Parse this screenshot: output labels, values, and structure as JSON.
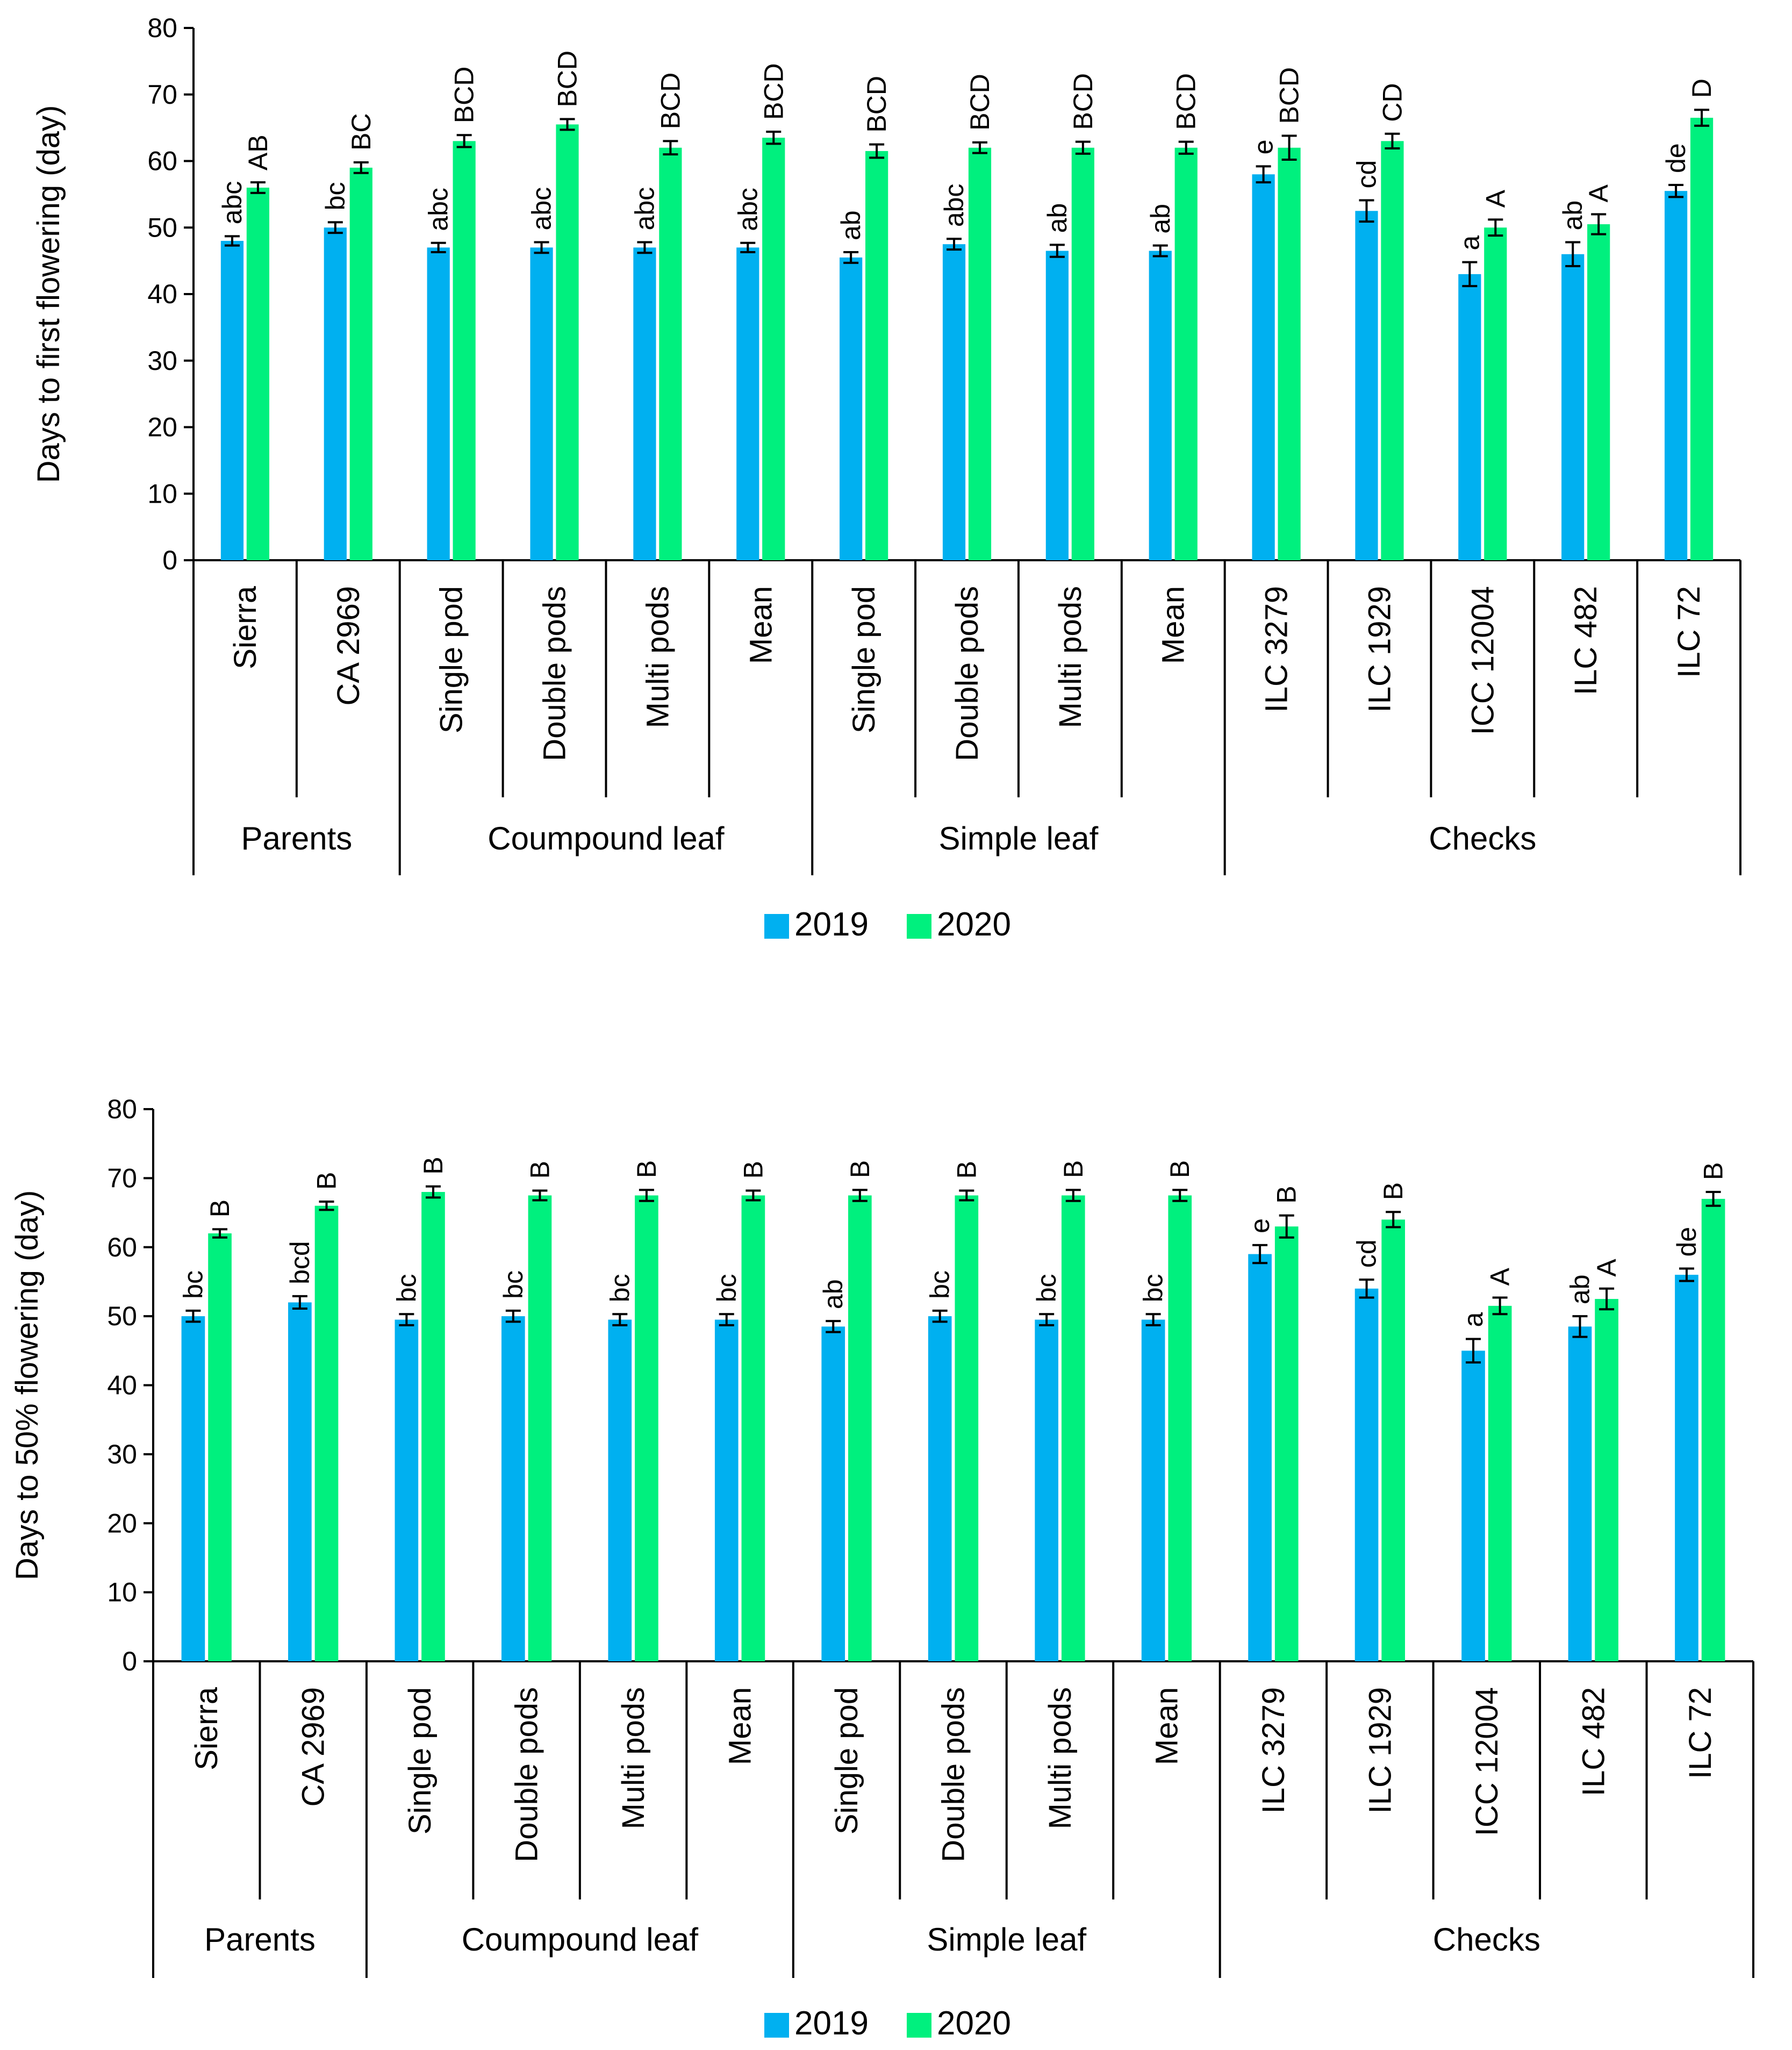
{
  "colors": {
    "s2019": "#00B0F0",
    "s2020": "#00F07E",
    "axis": "#000000"
  },
  "chart_data": [
    {
      "type": "bar",
      "ylabel": "Days to first flowering (day)",
      "ylim": [
        0,
        80
      ],
      "yticks": [
        0,
        10,
        20,
        30,
        40,
        50,
        60,
        70,
        80
      ],
      "categories": [
        "Sierra",
        "CA 2969",
        "Single pod",
        "Double pods",
        "Multi pods",
        "Mean",
        "Single pod",
        "Double pods",
        "Multi pods",
        "Mean",
        "ILC 3279",
        "ILC 1929",
        "ICC 12004",
        "ILC 482",
        "ILC 72"
      ],
      "groups": [
        {
          "label": "Parents",
          "count": 2
        },
        {
          "label": "Coumpound leaf",
          "count": 4
        },
        {
          "label": "Simple leaf",
          "count": 4
        },
        {
          "label": "Checks",
          "count": 5
        }
      ],
      "series": [
        {
          "name": "2019",
          "values": [
            48,
            50,
            47,
            47,
            47,
            47,
            45.5,
            47.5,
            46.5,
            46.5,
            58,
            52.5,
            43,
            46,
            55.5
          ],
          "errors": [
            0.7,
            0.8,
            0.7,
            0.8,
            0.8,
            0.7,
            0.8,
            0.8,
            0.9,
            0.8,
            1.2,
            1.6,
            1.8,
            1.8,
            0.9
          ],
          "labels": [
            "abc",
            "bc",
            "abc",
            "abc",
            "abc",
            "abc",
            "ab",
            "abc",
            "ab",
            "ab",
            "e",
            "cd",
            "a",
            "ab",
            "de"
          ]
        },
        {
          "name": "2020",
          "values": [
            56,
            59,
            63,
            65.5,
            62,
            63.5,
            61.5,
            62,
            62,
            62,
            62,
            63,
            50,
            50.5,
            66.5
          ],
          "errors": [
            0.8,
            0.8,
            0.9,
            0.8,
            1.0,
            0.9,
            1.0,
            0.8,
            0.9,
            0.9,
            1.8,
            1.1,
            1.2,
            1.5,
            1.2
          ],
          "labels": [
            "AB",
            "BC",
            "BCD",
            "BCD",
            "BCD",
            "BCD",
            "BCD",
            "BCD",
            "BCD",
            "BCD",
            "BCD",
            "CD",
            "A",
            "A",
            "D"
          ]
        }
      ],
      "legend": "bottom"
    },
    {
      "type": "bar",
      "ylabel": "Days to 50% flowering (day)",
      "ylim": [
        0,
        80
      ],
      "yticks": [
        0,
        10,
        20,
        30,
        40,
        50,
        60,
        70,
        80
      ],
      "categories": [
        "Sierra",
        "CA 2969",
        "Single pod",
        "Double pods",
        "Multi pods",
        "Mean",
        "Single pod",
        "Double pods",
        "Multi pods",
        "Mean",
        "ILC 3279",
        "ILC 1929",
        "ICC 12004",
        "ILC 482",
        "ILC 72"
      ],
      "groups": [
        {
          "label": "Parents",
          "count": 2
        },
        {
          "label": "Coumpound leaf",
          "count": 4
        },
        {
          "label": "Simple leaf",
          "count": 4
        },
        {
          "label": "Checks",
          "count": 5
        }
      ],
      "series": [
        {
          "name": "2019",
          "values": [
            50,
            52,
            49.5,
            50,
            49.5,
            49.5,
            48.5,
            50,
            49.5,
            49.5,
            59,
            54,
            45,
            48.5,
            56
          ],
          "errors": [
            0.8,
            0.9,
            0.8,
            0.8,
            0.8,
            0.8,
            0.8,
            0.8,
            0.8,
            0.8,
            1.3,
            1.3,
            1.7,
            1.5,
            0.9
          ],
          "labels": [
            "bc",
            "bcd",
            "bc",
            "bc",
            "bc",
            "bc",
            "ab",
            "bc",
            "bc",
            "bc",
            "e",
            "cd",
            "a",
            "ab",
            "de"
          ]
        },
        {
          "name": "2020",
          "values": [
            62,
            66,
            68,
            67.5,
            67.5,
            67.5,
            67.5,
            67.5,
            67.5,
            67.5,
            63,
            64,
            51.5,
            52.5,
            67
          ],
          "errors": [
            0.6,
            0.6,
            0.8,
            0.7,
            0.8,
            0.7,
            0.8,
            0.7,
            0.8,
            0.8,
            1.6,
            1.1,
            1.2,
            1.5,
            1.0
          ],
          "labels": [
            "B",
            "B",
            "B",
            "B",
            "B",
            "B",
            "B",
            "B",
            "B",
            "B",
            "B",
            "B",
            "A",
            "A",
            "B"
          ]
        }
      ],
      "legend": "bottom"
    }
  ]
}
